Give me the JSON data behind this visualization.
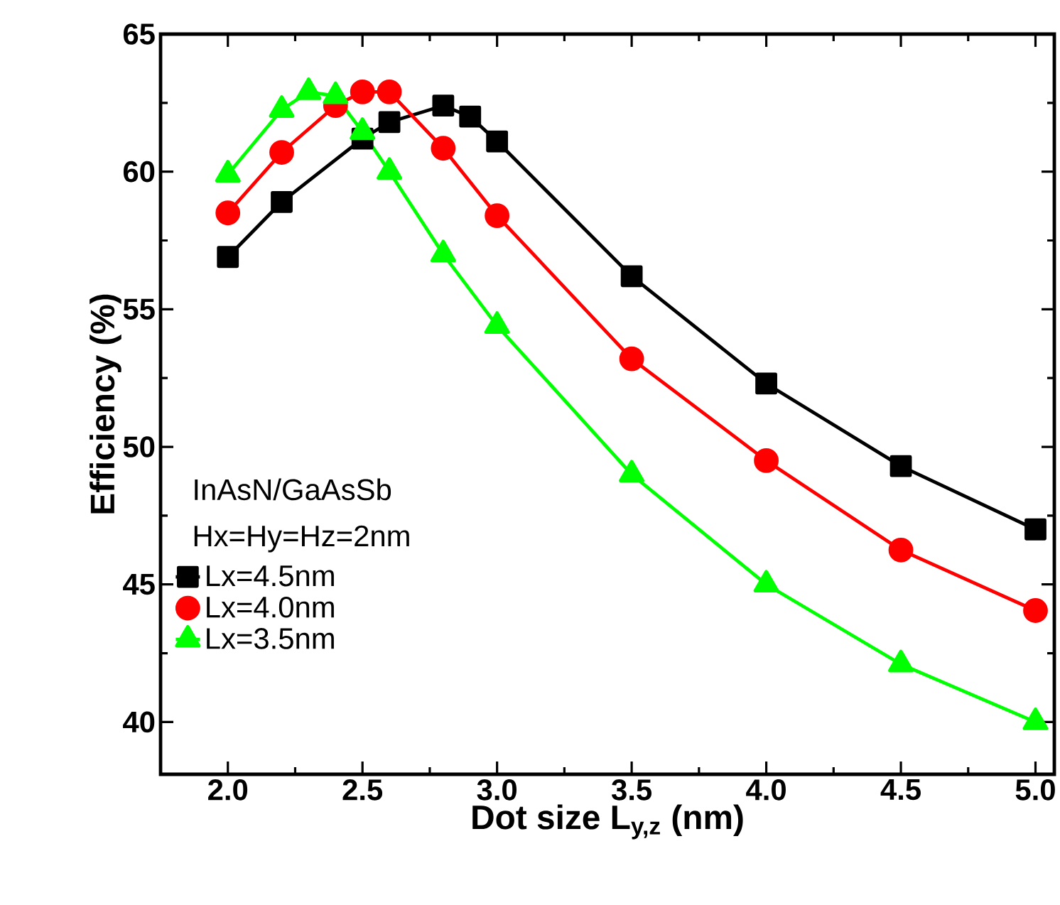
{
  "chart_data": {
    "type": "line",
    "xlabel": "Dot size L$_{y,z}$ (nm)",
    "ylabel": "Efficiency (%)",
    "xlim": [
      1.75,
      5.07
    ],
    "ylim": [
      38.1,
      65
    ],
    "xticks": [
      {
        "value": 2,
        "label": "2.0"
      },
      {
        "value": 2.5,
        "label": "2.5"
      },
      {
        "value": 3,
        "label": "3.0"
      },
      {
        "value": 3.5,
        "label": "3.5"
      },
      {
        "value": 4,
        "label": "4.0"
      },
      {
        "value": 4.5,
        "label": "4.5"
      },
      {
        "value": 5,
        "label": "5.0"
      }
    ],
    "yticks": [
      40,
      45,
      50,
      55,
      60,
      65
    ],
    "legend": "bottom left",
    "grid": false,
    "line_style": "solid",
    "annotations": [
      "InAsN/GaAsSb",
      "Hx=Hy=Hz=2nm"
    ],
    "series": [
      {
        "name": "Lx=4.5nm",
        "color": "#000000",
        "marker": "square",
        "x": [
          2.0,
          2.2,
          2.5,
          2.6,
          2.8,
          2.9,
          3.0,
          3.5,
          4.0,
          4.5,
          5.0
        ],
        "values": [
          56.9,
          58.9,
          61.2,
          61.8,
          62.4,
          62.0,
          61.1,
          56.2,
          52.3,
          49.3,
          47.0
        ]
      },
      {
        "name": "Lx=4.0nm",
        "color": "#ff0000",
        "marker": "circle",
        "x": [
          2.0,
          2.2,
          2.4,
          2.5,
          2.6,
          2.8,
          3.0,
          3.5,
          4.0,
          4.5,
          5.0
        ],
        "values": [
          58.5,
          60.7,
          62.4,
          62.9,
          62.9,
          60.85,
          58.4,
          53.2,
          49.5,
          46.25,
          44.05
        ]
      },
      {
        "name": "Lx=3.5nm",
        "color": "#00ff00",
        "marker": "triangle",
        "x": [
          2.0,
          2.2,
          2.3,
          2.4,
          2.5,
          2.6,
          2.8,
          3.0,
          3.5,
          4.0,
          4.5,
          5.0
        ],
        "values": [
          59.9,
          62.25,
          62.9,
          62.75,
          61.45,
          60.0,
          57.0,
          54.4,
          49.0,
          45.0,
          42.1,
          40.0
        ]
      }
    ]
  }
}
